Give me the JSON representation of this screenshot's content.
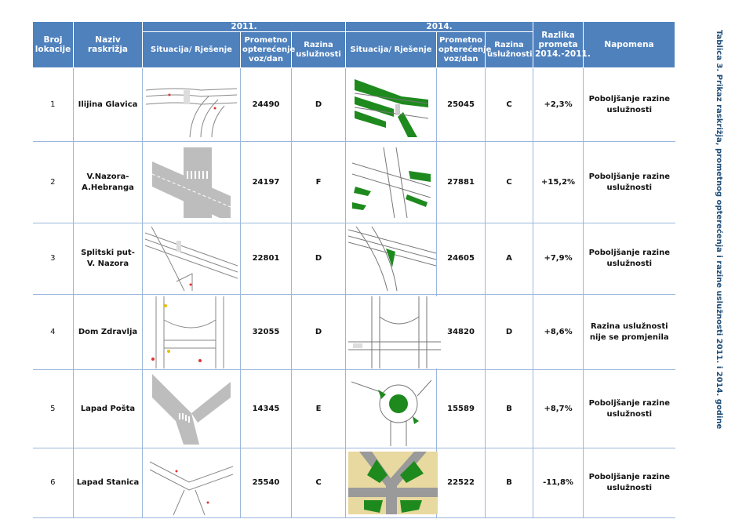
{
  "table": {
    "year1": "2011.",
    "year2": "2014.",
    "headers": {
      "broj_lokacije": "Broj lokacije",
      "naziv": "Naziv raskrižja",
      "situacija": "Situacija/ Rješenje",
      "promet": "Prometno opterećenje voz/dan",
      "razina": "Razina uslužnosti",
      "razlika": "Razlika prometa 2014.-2011.",
      "napomena": "Napomena"
    },
    "rows": [
      {
        "num": "1",
        "name": "Ilijina Glavica",
        "traffic2011": "24490",
        "level2011": "D",
        "traffic2014": "25045",
        "level2014": "C",
        "diff": "+2,3%",
        "note": "Poboljšanje razine uslužnosti"
      },
      {
        "num": "2",
        "name": "V.Nazora-A.Hebranga",
        "traffic2011": "24197",
        "level2011": "F",
        "traffic2014": "27881",
        "level2014": "C",
        "diff": "+15,2%",
        "note": "Poboljšanje razine uslužnosti"
      },
      {
        "num": "3",
        "name": "Splitski put- V. Nazora",
        "traffic2011": "22801",
        "level2011": "D",
        "traffic2014": "24605",
        "level2014": "A",
        "diff": "+7,9%",
        "note": "Poboljšanje razine uslužnosti"
      },
      {
        "num": "4",
        "name": "Dom Zdravlja",
        "traffic2011": "32055",
        "level2011": "D",
        "traffic2014": "34820",
        "level2014": "D",
        "diff": "+8,6%",
        "note": "Razina uslužnosti nije se promjenila"
      },
      {
        "num": "5",
        "name": "Lapad Pošta",
        "traffic2011": "14345",
        "level2011": "E",
        "traffic2014": "15589",
        "level2014": "B",
        "diff": "+8,7%",
        "note": "Poboljšanje razine uslužnosti"
      },
      {
        "num": "6",
        "name": "Lapad Stanica",
        "traffic2011": "25540",
        "level2011": "C",
        "traffic2014": "22522",
        "level2014": "B",
        "diff": "-11,8%",
        "note": "Poboljšanje razine uslužnosti"
      }
    ]
  },
  "caption": "Tablica 3. Prikaz raskrižja, prometnog opterećenja i razine uslužnosti 2011. i 2014. godine",
  "colors": {
    "header_bg": "#4f81bd",
    "road_grey": "#bdbdbd",
    "green": "#1e8a1e",
    "caption": "#1f4e79"
  }
}
